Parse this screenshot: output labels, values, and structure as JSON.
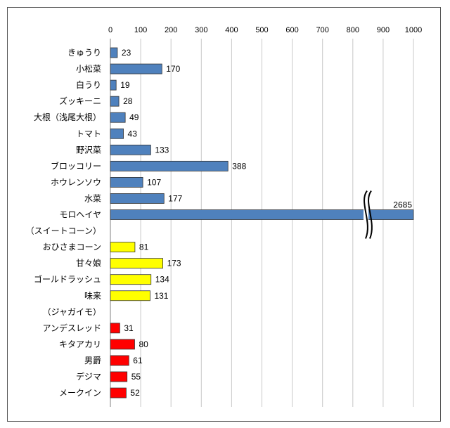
{
  "chart_data": {
    "type": "bar",
    "orientation": "horizontal",
    "title": "",
    "xlabel": "",
    "ylabel": "",
    "xlim": [
      0,
      1000
    ],
    "ticks": [
      "0",
      "100",
      "200",
      "300",
      "400",
      "500",
      "600",
      "700",
      "800",
      "900",
      "1000"
    ],
    "grid": true,
    "axis_break": {
      "category": "モロヘイヤ",
      "label": "2685"
    },
    "colors": {
      "group1": "#4f81bd",
      "group2": "#ffff00",
      "group3": "#ff0000"
    },
    "rows": [
      {
        "label": "きゅうり",
        "value": 23,
        "value_label": "23",
        "group": "group1"
      },
      {
        "label": "小松菜",
        "value": 170,
        "value_label": "170",
        "group": "group1"
      },
      {
        "label": "白うり",
        "value": 19,
        "value_label": "19",
        "group": "group1"
      },
      {
        "label": "ズッキーニ",
        "value": 28,
        "value_label": "28",
        "group": "group1"
      },
      {
        "label": "大根（浅尾大根）",
        "value": 49,
        "value_label": "49",
        "group": "group1"
      },
      {
        "label": "トマト",
        "value": 43,
        "value_label": "43",
        "group": "group1"
      },
      {
        "label": "野沢菜",
        "value": 133,
        "value_label": "133",
        "group": "group1"
      },
      {
        "label": "ブロッコリー",
        "value": 388,
        "value_label": "388",
        "group": "group1"
      },
      {
        "label": "ホウレンソウ",
        "value": 107,
        "value_label": "107",
        "group": "group1"
      },
      {
        "label": "水菜",
        "value": 177,
        "value_label": "177",
        "group": "group1"
      },
      {
        "label": "モロヘイヤ",
        "value": 2685,
        "value_label": "2685",
        "group": "group1"
      },
      {
        "label": "（スイートコーン）",
        "value": null,
        "group": "header"
      },
      {
        "label": "おひさまコーン",
        "value": 81,
        "value_label": "81",
        "group": "group2"
      },
      {
        "label": "甘々娘",
        "value": 173,
        "value_label": "173",
        "group": "group2"
      },
      {
        "label": "ゴールドラッシュ",
        "value": 134,
        "value_label": "134",
        "group": "group2"
      },
      {
        "label": "味来",
        "value": 131,
        "value_label": "131",
        "group": "group2"
      },
      {
        "label": "（ジャガイモ）",
        "value": null,
        "group": "header"
      },
      {
        "label": "アンデスレッド",
        "value": 31,
        "value_label": "31",
        "group": "group3"
      },
      {
        "label": "キタアカリ",
        "value": 80,
        "value_label": "80",
        "group": "group3"
      },
      {
        "label": "男爵",
        "value": 61,
        "value_label": "61",
        "group": "group3"
      },
      {
        "label": "デジマ",
        "value": 55,
        "value_label": "55",
        "group": "group3"
      },
      {
        "label": "メークイン",
        "value": 52,
        "value_label": "52",
        "group": "group3"
      }
    ]
  }
}
